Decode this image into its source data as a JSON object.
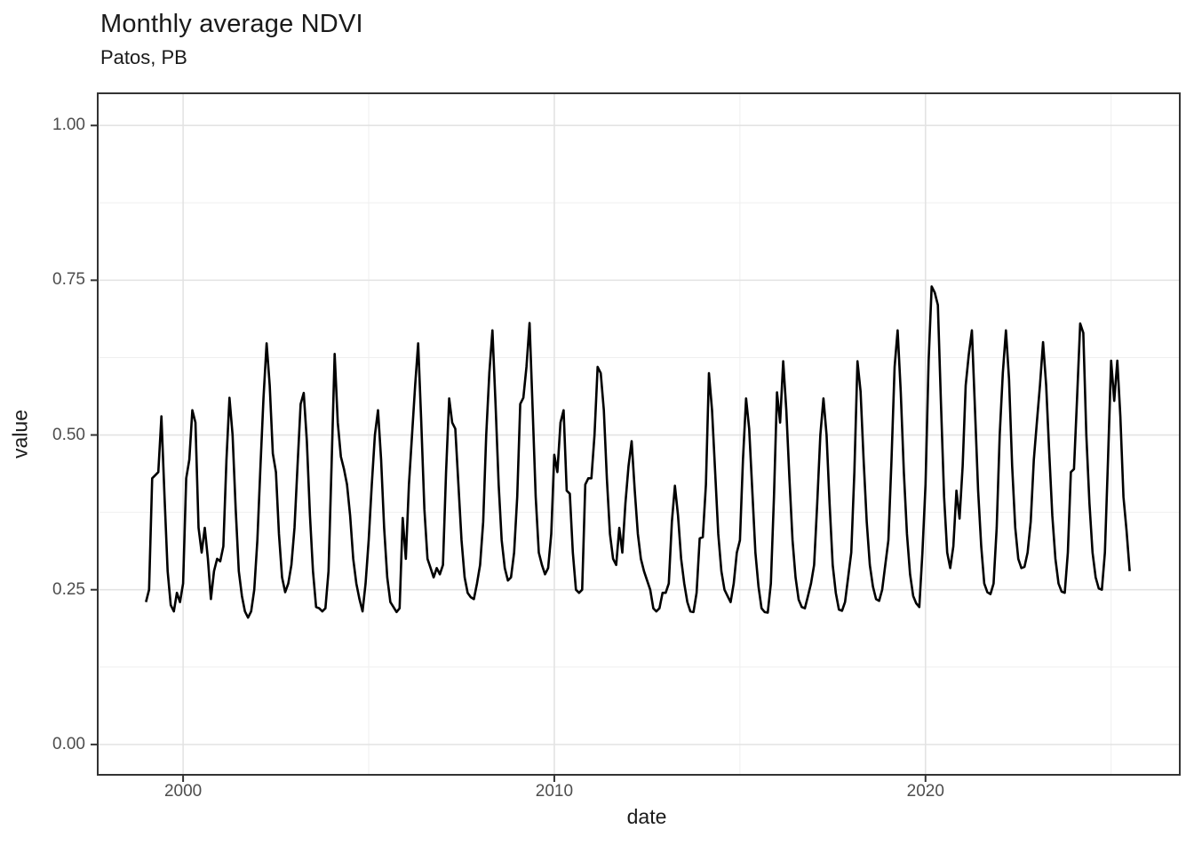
{
  "title": "Monthly average NDVI",
  "subtitle": "Patos, PB",
  "axes": {
    "x_label": "date",
    "y_label": "value"
  },
  "colors": {
    "background": "#ffffff",
    "line": "#000000",
    "grid_major": "#e3e3e3",
    "grid_minor": "#efefef",
    "panel_border": "#333333",
    "tick_mark": "#333333",
    "tick_text": "#4d4d4d",
    "title_text": "#1a1a1a"
  },
  "chart_data": {
    "type": "line",
    "title": "Monthly average NDVI",
    "subtitle": "Patos, PB",
    "xlabel": "date",
    "ylabel": "value",
    "legend_position": "none",
    "grid": true,
    "xlim": [
      1997.7,
      2026.85
    ],
    "ylim": [
      -0.049,
      1.052
    ],
    "x_tick_labels": [
      "2000",
      "2010",
      "2020"
    ],
    "x_tick_values": [
      2000,
      2010,
      2020
    ],
    "x_minor_gridlines": [
      2005,
      2015,
      2025
    ],
    "y_tick_labels": [
      "0.00",
      "0.25",
      "0.50",
      "0.75",
      "1.00"
    ],
    "y_tick_values": [
      0,
      0.25,
      0.5,
      0.75,
      1
    ],
    "y_minor_gridlines": [
      0.125,
      0.375,
      0.625,
      0.875
    ],
    "series_name": "monthly average NDVI value",
    "start": "1999-01",
    "end": "2025-07",
    "points_per_year": 12,
    "values_by_year": [
      {
        "year": 1999,
        "values": [
          0.23,
          0.25,
          0.43,
          0.435,
          0.44,
          0.53,
          0.4,
          0.28,
          0.225,
          0.215,
          0.245,
          0.23
        ]
      },
      {
        "year": 2000,
        "values": [
          0.26,
          0.43,
          0.46,
          0.54,
          0.52,
          0.35,
          0.31,
          0.35,
          0.3,
          0.235,
          0.28,
          0.3
        ]
      },
      {
        "year": 2001,
        "values": [
          0.296,
          0.32,
          0.46,
          0.56,
          0.5,
          0.38,
          0.28,
          0.24,
          0.215,
          0.205,
          0.215,
          0.25
        ]
      },
      {
        "year": 2002,
        "values": [
          0.33,
          0.45,
          0.56,
          0.648,
          0.58,
          0.47,
          0.44,
          0.34,
          0.27,
          0.246,
          0.26,
          0.29
        ]
      },
      {
        "year": 2003,
        "values": [
          0.35,
          0.45,
          0.55,
          0.568,
          0.49,
          0.37,
          0.28,
          0.222,
          0.22,
          0.215,
          0.22,
          0.28
        ]
      },
      {
        "year": 2004,
        "values": [
          0.45,
          0.631,
          0.52,
          0.465,
          0.445,
          0.42,
          0.37,
          0.3,
          0.26,
          0.235,
          0.215,
          0.26
        ]
      },
      {
        "year": 2005,
        "values": [
          0.33,
          0.42,
          0.5,
          0.54,
          0.46,
          0.35,
          0.27,
          0.23,
          0.222,
          0.214,
          0.22,
          0.366
        ]
      },
      {
        "year": 2006,
        "values": [
          0.3,
          0.42,
          0.5,
          0.58,
          0.648,
          0.52,
          0.38,
          0.3,
          0.285,
          0.27,
          0.285,
          0.275
        ]
      },
      {
        "year": 2007,
        "values": [
          0.29,
          0.44,
          0.559,
          0.52,
          0.51,
          0.42,
          0.33,
          0.27,
          0.245,
          0.238,
          0.235,
          0.26
        ]
      },
      {
        "year": 2008,
        "values": [
          0.29,
          0.36,
          0.5,
          0.6,
          0.669,
          0.55,
          0.42,
          0.33,
          0.285,
          0.265,
          0.27,
          0.31
        ]
      },
      {
        "year": 2009,
        "values": [
          0.4,
          0.55,
          0.56,
          0.61,
          0.681,
          0.54,
          0.4,
          0.31,
          0.29,
          0.275,
          0.285,
          0.34
        ]
      },
      {
        "year": 2010,
        "values": [
          0.468,
          0.44,
          0.52,
          0.54,
          0.41,
          0.405,
          0.31,
          0.25,
          0.245,
          0.25,
          0.42,
          0.43
        ]
      },
      {
        "year": 2011,
        "values": [
          0.43,
          0.5,
          0.61,
          0.6,
          0.54,
          0.43,
          0.34,
          0.3,
          0.29,
          0.35,
          0.31,
          0.39
        ]
      },
      {
        "year": 2012,
        "values": [
          0.45,
          0.49,
          0.41,
          0.34,
          0.3,
          0.28,
          0.265,
          0.25,
          0.22,
          0.215,
          0.22,
          0.245
        ]
      },
      {
        "year": 2013,
        "values": [
          0.245,
          0.26,
          0.36,
          0.418,
          0.37,
          0.3,
          0.26,
          0.23,
          0.215,
          0.214,
          0.245,
          0.333
        ]
      },
      {
        "year": 2014,
        "values": [
          0.335,
          0.42,
          0.6,
          0.54,
          0.44,
          0.34,
          0.28,
          0.25,
          0.24,
          0.23,
          0.26,
          0.31
        ]
      },
      {
        "year": 2015,
        "values": [
          0.33,
          0.46,
          0.559,
          0.51,
          0.41,
          0.31,
          0.255,
          0.22,
          0.214,
          0.213,
          0.26,
          0.4
        ]
      },
      {
        "year": 2016,
        "values": [
          0.569,
          0.52,
          0.619,
          0.54,
          0.43,
          0.33,
          0.27,
          0.234,
          0.222,
          0.22,
          0.24,
          0.26
        ]
      },
      {
        "year": 2017,
        "values": [
          0.29,
          0.39,
          0.5,
          0.559,
          0.5,
          0.39,
          0.29,
          0.245,
          0.218,
          0.216,
          0.23,
          0.27
        ]
      },
      {
        "year": 2018,
        "values": [
          0.31,
          0.44,
          0.619,
          0.57,
          0.46,
          0.36,
          0.29,
          0.255,
          0.235,
          0.232,
          0.25,
          0.29
        ]
      },
      {
        "year": 2019,
        "values": [
          0.33,
          0.46,
          0.61,
          0.669,
          0.57,
          0.44,
          0.34,
          0.275,
          0.24,
          0.228,
          0.222,
          0.31
        ]
      },
      {
        "year": 2020,
        "values": [
          0.42,
          0.62,
          0.74,
          0.73,
          0.71,
          0.55,
          0.4,
          0.31,
          0.285,
          0.32,
          0.41,
          0.365
        ]
      },
      {
        "year": 2021,
        "values": [
          0.45,
          0.58,
          0.63,
          0.669,
          0.54,
          0.41,
          0.32,
          0.26,
          0.246,
          0.243,
          0.26,
          0.35
        ]
      },
      {
        "year": 2022,
        "values": [
          0.5,
          0.6,
          0.669,
          0.59,
          0.45,
          0.35,
          0.3,
          0.285,
          0.287,
          0.31,
          0.36,
          0.46
        ]
      },
      {
        "year": 2023,
        "values": [
          0.52,
          0.58,
          0.65,
          0.58,
          0.47,
          0.37,
          0.3,
          0.26,
          0.247,
          0.245,
          0.31,
          0.44
        ]
      },
      {
        "year": 2024,
        "values": [
          0.445,
          0.56,
          0.68,
          0.665,
          0.5,
          0.39,
          0.31,
          0.27,
          0.252,
          0.25,
          0.31,
          0.46
        ]
      },
      {
        "year": 2025,
        "values": [
          0.62,
          0.555,
          0.62,
          0.53,
          0.4,
          0.345,
          0.28
        ]
      }
    ]
  }
}
